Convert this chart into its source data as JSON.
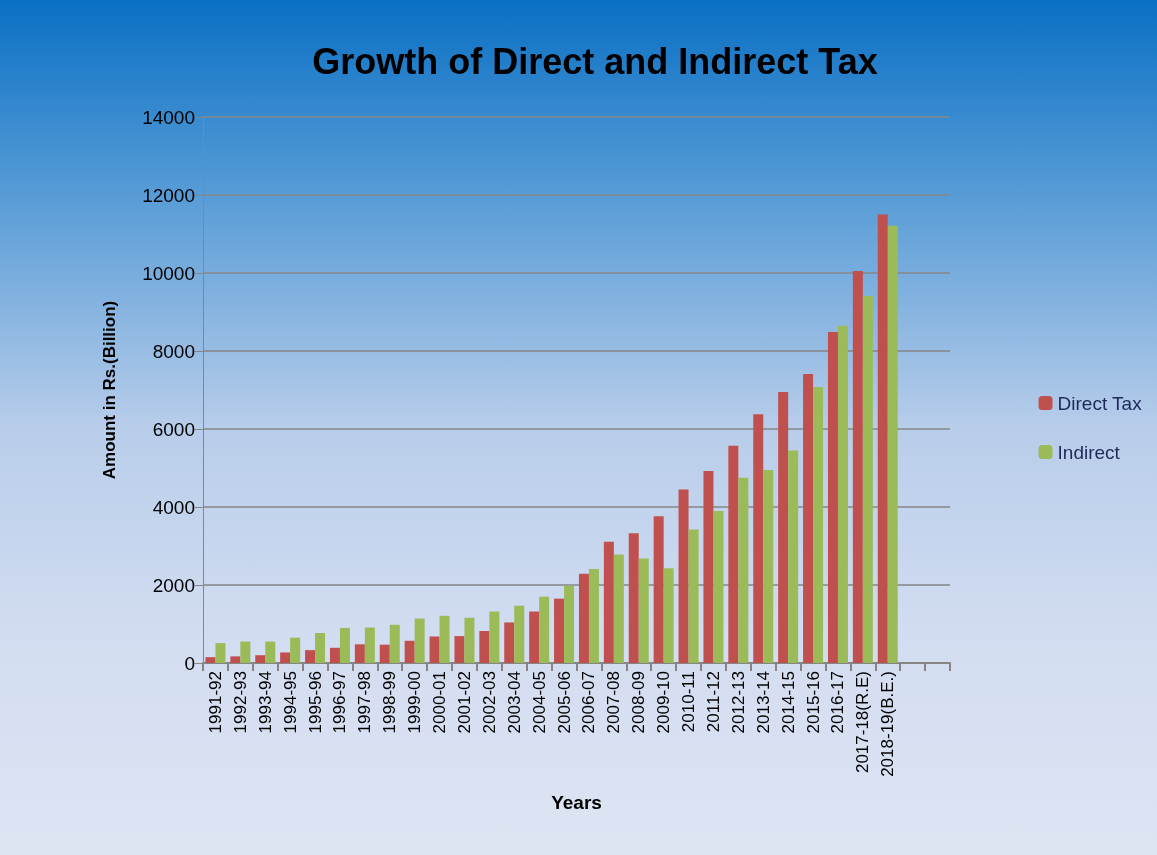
{
  "chart_data": {
    "type": "bar",
    "title": "Growth of Direct and Indirect Tax",
    "xlabel": "Years",
    "ylabel": "Amount in Rs.(Billion)",
    "categories": [
      "1991-92",
      "1992-93",
      "1993-94",
      "1994-95",
      "1995-96",
      "1996-97",
      "1997-98",
      "1998-99",
      "1999-00",
      "2000-01",
      "2001-02",
      "2002-03",
      "2003-04",
      "2004-05",
      "2005-06",
      "2006-07",
      "2007-08",
      "2008-09",
      "2009-10",
      "2010-11",
      "2011-12",
      "2012-13",
      "2013-14",
      "2014-15",
      "2015-16",
      "2016-17",
      "2017-18(R.E)",
      "2018-19(B.E.)",
      null,
      null
    ],
    "series": [
      {
        "name": "Direct Tax",
        "color": "#c0504d",
        "values": [
          150,
          170,
          200,
          270,
          330,
          390,
          480,
          470,
          570,
          680,
          690,
          820,
          1040,
          1320,
          1650,
          2290,
          3110,
          3330,
          3760,
          4450,
          4920,
          5570,
          6380,
          6950,
          7410,
          8490,
          10050,
          11500,
          null,
          null
        ]
      },
      {
        "name": "Indirect",
        "color": "#9bbb59",
        "values": [
          510,
          550,
          550,
          650,
          770,
          900,
          910,
          980,
          1140,
          1210,
          1160,
          1320,
          1470,
          1700,
          1980,
          2410,
          2780,
          2680,
          2430,
          3420,
          3900,
          4750,
          4950,
          5450,
          7080,
          8650,
          9410,
          11210,
          null,
          null
        ]
      }
    ],
    "ylim": [
      0,
      14000
    ],
    "yticks": [
      0,
      2000,
      4000,
      6000,
      8000,
      10000,
      12000,
      14000
    ],
    "grid": "y",
    "legend": "right"
  }
}
